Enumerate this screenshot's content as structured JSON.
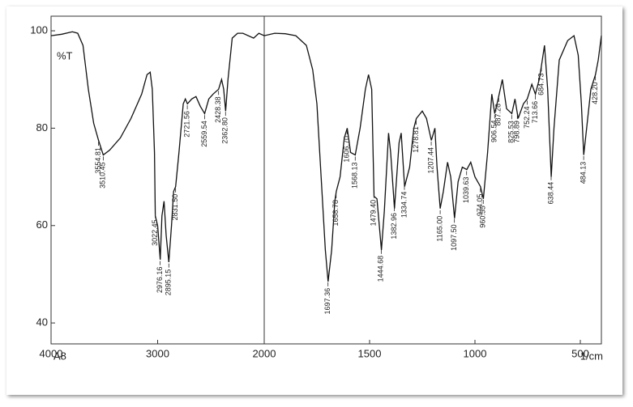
{
  "chart_data": {
    "type": "line",
    "title": "A8",
    "ylabel": "%T",
    "xlabel": "1/cm",
    "xlim": [
      4000,
      400
    ],
    "scale_break": 2000,
    "ylim": [
      35.7,
      103
    ],
    "xticks": [
      4000,
      3000,
      2000,
      1500,
      1000,
      500
    ],
    "yticks": [
      40,
      60,
      80,
      100
    ],
    "color": "#111111",
    "series": [
      {
        "name": "A8",
        "x": [
          4000,
          3900,
          3800,
          3750,
          3700,
          3650,
          3600,
          3554,
          3510,
          3450,
          3350,
          3250,
          3150,
          3100,
          3070,
          3050,
          3030,
          3022,
          3000,
          2976,
          2960,
          2940,
          2920,
          2895,
          2870,
          2850,
          2831,
          2800,
          2760,
          2740,
          2721,
          2680,
          2640,
          2600,
          2559,
          2520,
          2480,
          2428,
          2400,
          2380,
          2362,
          2340,
          2300,
          2250,
          2200,
          2100,
          2050,
          2000,
          1950,
          1900,
          1850,
          1800,
          1770,
          1750,
          1730,
          1710,
          1697,
          1680,
          1665,
          1658,
          1640,
          1620,
          1606,
          1590,
          1568,
          1545,
          1520,
          1505,
          1490,
          1479,
          1465,
          1444,
          1430,
          1410,
          1400,
          1382,
          1360,
          1350,
          1334,
          1310,
          1290,
          1278,
          1250,
          1230,
          1207,
          1190,
          1180,
          1165,
          1150,
          1130,
          1115,
          1097,
          1080,
          1060,
          1039,
          1020,
          1000,
          974,
          960,
          940,
          920,
          906,
          890,
          870,
          850,
          825,
          810,
          795,
          770,
          752,
          730,
          713,
          695,
          684,
          670,
          655,
          638,
          625,
          600,
          560,
          530,
          510,
          495,
          484,
          470,
          450,
          428,
          415,
          400
        ],
        "values": [
          99,
          99.3,
          99.8,
          99.5,
          97,
          88,
          81,
          77.5,
          74.5,
          75.5,
          78,
          82,
          87,
          91,
          91.5,
          88,
          75,
          62,
          60,
          53,
          62,
          65,
          58,
          52.5,
          60,
          67,
          68,
          75,
          85,
          86,
          85,
          86,
          86.5,
          84.5,
          83,
          86,
          87,
          88,
          90,
          88,
          83.5,
          90,
          98.5,
          99.5,
          99.5,
          98.5,
          99.5,
          99,
          99.5,
          99.4,
          99,
          97,
          92,
          85,
          70,
          55,
          48.5,
          55,
          65,
          67,
          70,
          78,
          80,
          75,
          74.5,
          80,
          88,
          91,
          88,
          66,
          65.5,
          55,
          63,
          79,
          75,
          63.5,
          77,
          79,
          68,
          72,
          80,
          82,
          83.5,
          82,
          77.5,
          80,
          72,
          63.5,
          67,
          73,
          70,
          61.5,
          69,
          72,
          71.5,
          73,
          70,
          68,
          65.5,
          75,
          87,
          83,
          86,
          90,
          84,
          83,
          86,
          82,
          85,
          86,
          89,
          87,
          90,
          93,
          97,
          88,
          70,
          80,
          94,
          98,
          99,
          95,
          85,
          74.5,
          80,
          88,
          91,
          94,
          99
        ]
      }
    ],
    "peaks": [
      3554.81,
      3510.45,
      3022.45,
      2976.16,
      2895.15,
      {
        "value": 2831.5,
        "label": "2831.50"
      },
      2721.56,
      2559.54,
      2428.38,
      {
        "value": 2362.8,
        "label": "2362.80"
      },
      1697.36,
      1658.78,
      {
        "value": 1606.7,
        "label": "1606.70"
      },
      1568.13,
      {
        "value": 1479.4,
        "label": "1479.40"
      },
      1444.68,
      1382.96,
      1334.74,
      1278.81,
      1207.44,
      {
        "value": 1165,
        "label": "1165.00"
      },
      {
        "value": 1097.5,
        "label": "1097.50"
      },
      1039.63,
      974.05,
      960.55,
      906.54,
      887.26,
      825.53,
      798.89,
      752.24,
      713.66,
      684.73,
      638.44,
      484.13,
      {
        "value": 428.2,
        "label": "428.20"
      }
    ]
  }
}
